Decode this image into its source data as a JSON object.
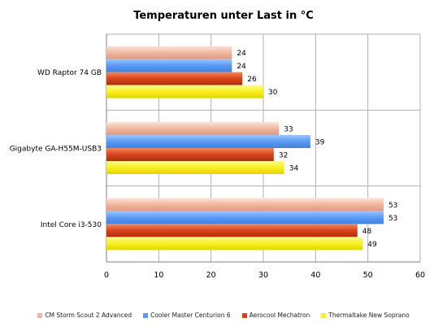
{
  "chart_data": {
    "type": "bar",
    "orientation": "horizontal",
    "title": "Temperaturen unter Last in °C",
    "categories": [
      "WD Raptor 74 GB",
      "Gigabyte GA-H55M-USB3",
      "Intel Core i3-530"
    ],
    "series": [
      {
        "name": "CM Storm Scout 2 Advanced",
        "values": [
          24,
          33,
          53
        ],
        "color": "#f0b8a0"
      },
      {
        "name": "Cooler Master Centurion 6",
        "values": [
          24,
          39,
          53
        ],
        "color": "#5b9bf5"
      },
      {
        "name": "Aerocool Mechatron",
        "values": [
          26,
          32,
          48
        ],
        "color": "#d8441c"
      },
      {
        "name": "Thermaltake New Soprano",
        "values": [
          30,
          34,
          49
        ],
        "color": "#f8f020"
      }
    ],
    "xlim": [
      0,
      60
    ],
    "xticks": [
      0,
      10,
      20,
      30,
      40,
      50,
      60
    ],
    "grid": true,
    "legend_position": "bottom"
  }
}
